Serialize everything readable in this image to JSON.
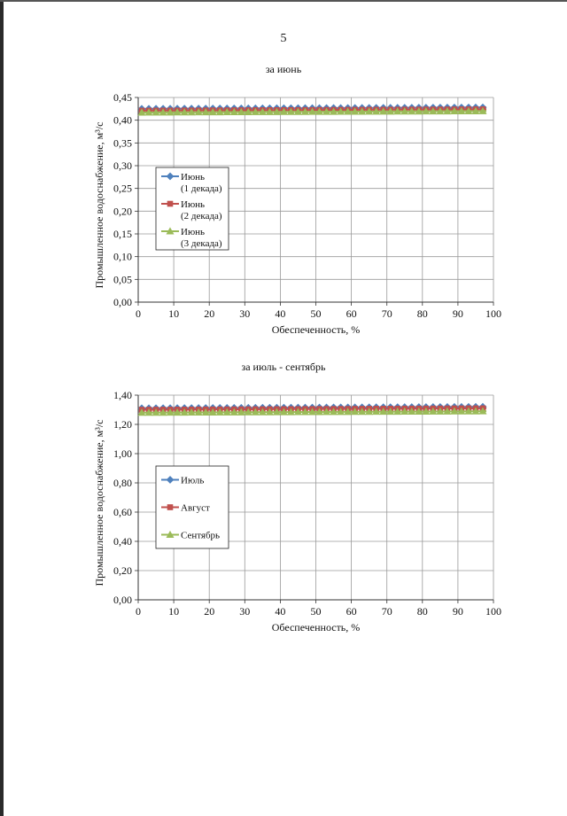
{
  "page": {
    "number": "5"
  },
  "colors": {
    "series1": "#4f81bd",
    "series2": "#c0504d",
    "series3": "#9bbb59",
    "grid": "#9a9a9a",
    "axis": "#333333"
  },
  "chart_data": [
    {
      "type": "line",
      "title": "за июнь",
      "xlabel": "Обеспеченность, %",
      "ylabel": "Промышленное водоснабжение, м³/с",
      "xlim": [
        0,
        100
      ],
      "ylim": [
        0,
        0.45
      ],
      "x_ticks": [
        "0",
        "10",
        "20",
        "30",
        "40",
        "50",
        "60",
        "70",
        "80",
        "90",
        "100"
      ],
      "y_ticks": [
        "0,00",
        "0,05",
        "0,10",
        "0,15",
        "0,20",
        "0,25",
        "0,30",
        "0,35",
        "0,40",
        "0,45"
      ],
      "grid": true,
      "legend_position": "left-middle",
      "marker_interval": 2,
      "x_range": [
        1,
        98
      ],
      "series": [
        {
          "name": "Июнь\n(1 декада)",
          "marker": "diamond",
          "color": "#4f81bd",
          "y_start": 0.425,
          "y_end": 0.428
        },
        {
          "name": "Июнь\n(2 декада)",
          "marker": "square",
          "color": "#c0504d",
          "y_start": 0.421,
          "y_end": 0.424
        },
        {
          "name": "Июнь\n(3 декада)",
          "marker": "triangle",
          "color": "#9bbb59",
          "y_start": 0.417,
          "y_end": 0.42
        }
      ]
    },
    {
      "type": "line",
      "title": "за июль - сентябрь",
      "xlabel": "Обеспеченность, %",
      "ylabel": "Промышленное водоснабжение, м³/с",
      "xlim": [
        0,
        100
      ],
      "ylim": [
        0,
        1.4
      ],
      "x_ticks": [
        "0",
        "10",
        "20",
        "30",
        "40",
        "50",
        "60",
        "70",
        "80",
        "90",
        "100"
      ],
      "y_ticks": [
        "0,00",
        "0,20",
        "0,40",
        "0,60",
        "0,80",
        "1,00",
        "1,20",
        "1,40"
      ],
      "grid": true,
      "legend_position": "left-middle",
      "marker_interval": 2,
      "x_range": [
        1,
        98
      ],
      "series": [
        {
          "name": "Июль",
          "marker": "diamond",
          "color": "#4f81bd",
          "y_start": 1.31,
          "y_end": 1.32
        },
        {
          "name": "Август",
          "marker": "square",
          "color": "#c0504d",
          "y_start": 1.3,
          "y_end": 1.31
        },
        {
          "name": "Сентябрь",
          "marker": "triangle",
          "color": "#9bbb59",
          "y_start": 1.28,
          "y_end": 1.29
        }
      ]
    }
  ]
}
